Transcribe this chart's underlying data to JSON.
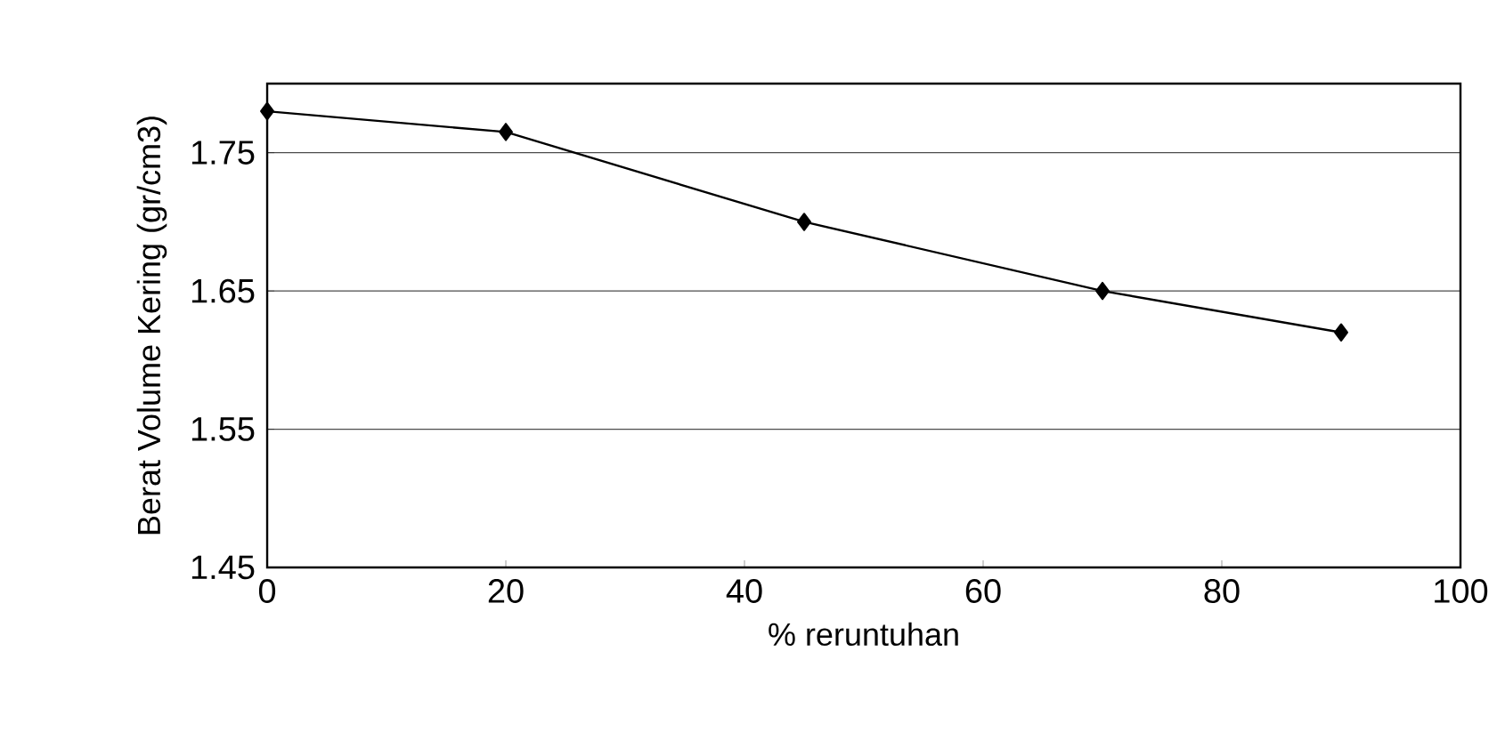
{
  "chart_data": {
    "type": "line",
    "xlabel": "% reruntuhan",
    "ylabel": "Berat Volume Kering (gr/cm3)",
    "x": [
      0,
      20,
      45,
      70,
      90
    ],
    "series": [
      {
        "color": "#000000",
        "values": [
          1.78,
          1.765,
          1.7,
          1.65,
          1.62
        ]
      }
    ],
    "xlim": [
      0,
      100
    ],
    "xticks": [
      0,
      20,
      40,
      60,
      80,
      100
    ],
    "ylim": [
      1.45,
      1.8
    ],
    "yticks": [
      1.45,
      1.55,
      1.65,
      1.75
    ],
    "grid": "y",
    "marker": "diamond",
    "line_style": "solid"
  }
}
